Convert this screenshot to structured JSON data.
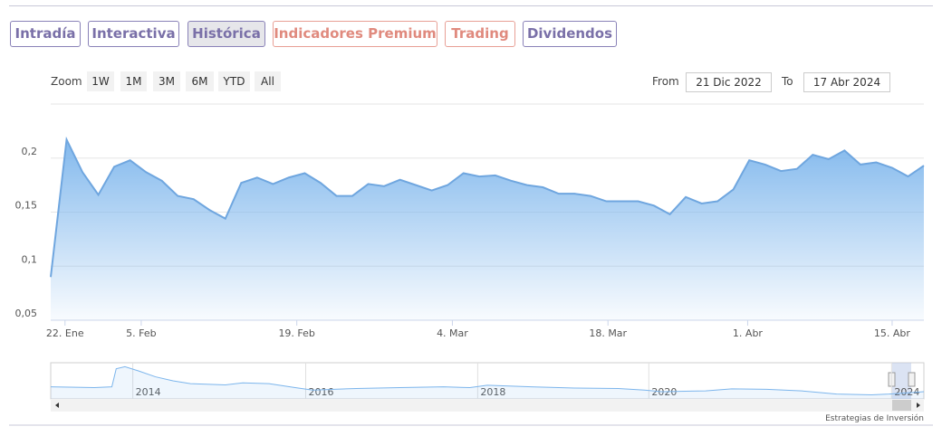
{
  "tabs": [
    "Intradía",
    "Interactiva",
    "Histórica",
    "Indicadores Premium",
    "Trading",
    "Dividendos"
  ],
  "zoom": {
    "label": "Zoom",
    "buttons": [
      "1W",
      "1M",
      "3M",
      "6M",
      "YTD",
      "All"
    ]
  },
  "range": {
    "from_label": "From",
    "from": "21 Dic 2022",
    "to_label": "To",
    "to": "17 Abr 2024"
  },
  "footer": "Estrategias de Inversión",
  "chart_data": {
    "type": "area",
    "color": "#7cb5ec",
    "grid": true,
    "x": [
      0,
      1,
      2,
      3,
      4,
      5,
      6,
      7,
      8,
      9,
      10,
      11,
      12,
      13,
      14,
      15,
      16,
      17,
      18,
      19,
      20,
      21,
      22,
      23,
      24,
      25,
      26,
      27,
      28,
      29,
      30,
      31,
      32,
      33,
      34,
      35,
      36,
      37,
      38,
      39,
      40,
      41,
      42,
      43,
      44,
      45,
      46,
      47,
      48,
      49,
      50,
      51,
      52,
      53,
      54,
      55
    ],
    "values": [
      0.09,
      0.217,
      0.187,
      0.166,
      0.192,
      0.198,
      0.187,
      0.179,
      0.165,
      0.162,
      0.152,
      0.144,
      0.177,
      0.182,
      0.176,
      0.182,
      0.186,
      0.177,
      0.165,
      0.165,
      0.176,
      0.174,
      0.18,
      0.175,
      0.17,
      0.175,
      0.186,
      0.183,
      0.184,
      0.179,
      0.175,
      0.173,
      0.167,
      0.167,
      0.165,
      0.16,
      0.16,
      0.16,
      0.156,
      0.148,
      0.164,
      0.158,
      0.16,
      0.171,
      0.198,
      0.194,
      0.188,
      0.19,
      0.203,
      0.199,
      0.207,
      0.194,
      0.196,
      0.191,
      0.183,
      0.193
    ],
    "xlim": [
      0,
      55
    ],
    "xticks": [
      {
        "value": 0.9,
        "label": "22. Ene"
      },
      {
        "value": 5.7,
        "label": "5. Feb"
      },
      {
        "value": 15.5,
        "label": "19. Feb"
      },
      {
        "value": 25.3,
        "label": "4. Mar"
      },
      {
        "value": 35.1,
        "label": "18. Mar"
      },
      {
        "value": 43.9,
        "label": "1. Abr"
      },
      {
        "value": 53,
        "label": "15. Abr"
      }
    ],
    "ylim": [
      0.05,
      0.25
    ],
    "yticks": [
      {
        "value": 0.05,
        "label": "0,05"
      },
      {
        "value": 0.1,
        "label": "0,1"
      },
      {
        "value": 0.15,
        "label": "0,15"
      },
      {
        "value": 0.2,
        "label": "0,2"
      }
    ],
    "navigator": {
      "x": [
        0,
        5,
        7,
        7.5,
        8.5,
        10,
        12,
        14,
        16,
        20,
        22,
        25,
        28,
        30,
        35,
        40,
        45,
        48,
        50,
        55,
        60,
        65,
        68,
        70,
        75,
        78,
        82,
        86,
        90,
        94,
        96,
        100
      ],
      "values": [
        0.3,
        0.28,
        0.3,
        0.75,
        0.8,
        0.7,
        0.55,
        0.45,
        0.38,
        0.35,
        0.4,
        0.38,
        0.28,
        0.22,
        0.26,
        0.28,
        0.3,
        0.28,
        0.34,
        0.3,
        0.27,
        0.26,
        0.22,
        0.18,
        0.2,
        0.25,
        0.24,
        0.2,
        0.12,
        0.1,
        0.12,
        0.18
      ],
      "xlim": [
        0,
        100
      ],
      "ylim": [
        0,
        0.9
      ],
      "xticks": [
        {
          "value": 9.4,
          "label": "2014"
        },
        {
          "value": 29.2,
          "label": "2016"
        },
        {
          "value": 48.9,
          "label": "2018"
        },
        {
          "value": 68.5,
          "label": "2020"
        },
        {
          "value": 96.3,
          "label": "2024"
        }
      ]
    }
  }
}
